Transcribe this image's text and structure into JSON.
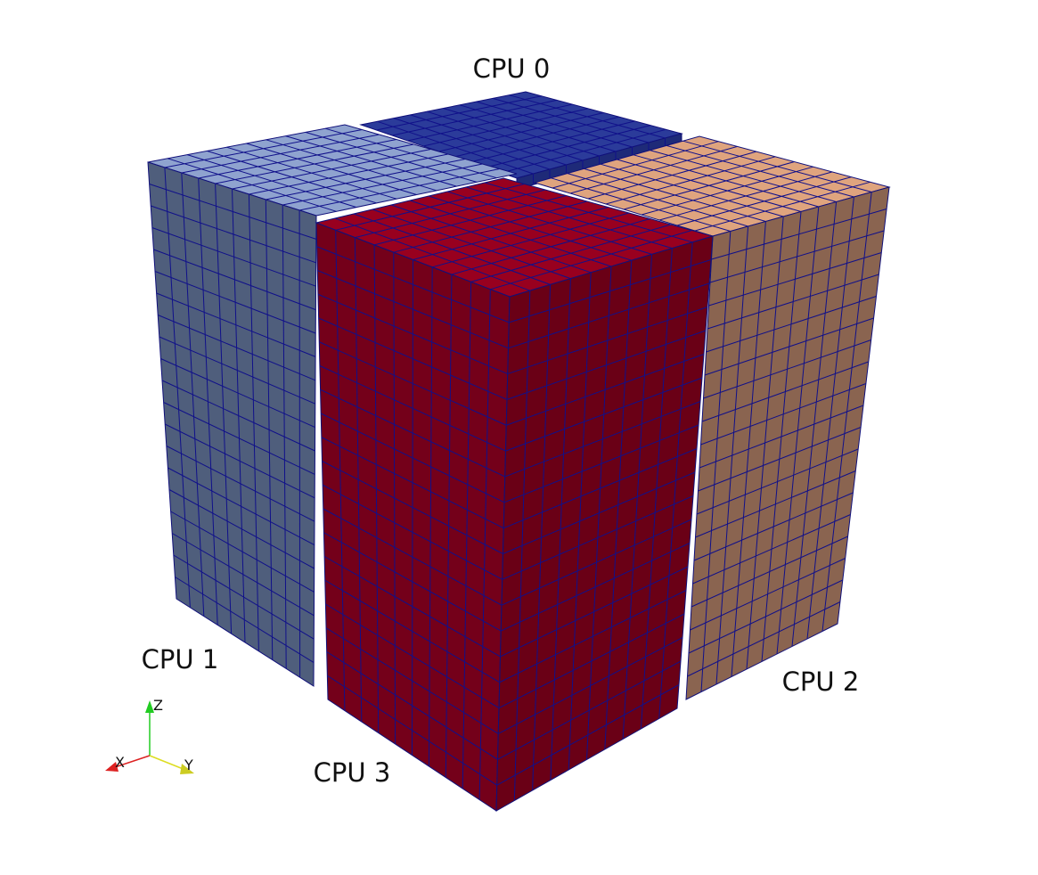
{
  "labels": {
    "cpu0": "CPU 0",
    "cpu1": "CPU 1",
    "cpu2": "CPU 2",
    "cpu3": "CPU 3"
  },
  "axes": {
    "x": "X",
    "y": "Y",
    "z": "Z"
  }
}
